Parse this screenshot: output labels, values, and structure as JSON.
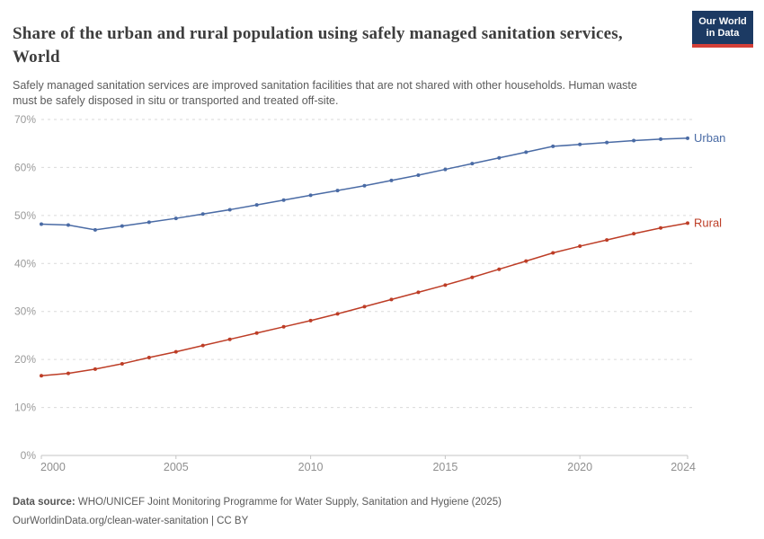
{
  "header": {
    "title": "Share of the urban and rural population using safely managed sanitation services, World",
    "subtitle": "Safely managed sanitation services are improved sanitation facilities that are not shared with other households. Human waste must be safely disposed in situ or transported and treated off-site.",
    "logo": {
      "line1": "Our World",
      "line2": "in Data",
      "bg_color": "#1c3a63",
      "accent_color": "#d43f38"
    }
  },
  "chart_data": {
    "type": "line",
    "title": "Share of the urban and rural population using safely managed sanitation services, World",
    "x": [
      2000,
      2001,
      2002,
      2003,
      2004,
      2005,
      2006,
      2007,
      2008,
      2009,
      2010,
      2011,
      2012,
      2013,
      2014,
      2015,
      2016,
      2017,
      2018,
      2019,
      2020,
      2021,
      2022,
      2023,
      2024
    ],
    "series": [
      {
        "name": "Urban",
        "color": "#4a6ba5",
        "values": [
          48.2,
          48.0,
          47.0,
          47.8,
          48.6,
          49.4,
          50.3,
          51.2,
          52.2,
          53.2,
          54.2,
          55.2,
          56.2,
          57.3,
          58.4,
          59.6,
          60.8,
          62.0,
          63.2,
          64.4,
          64.8,
          65.2,
          65.6,
          65.9,
          66.1
        ]
      },
      {
        "name": "Rural",
        "color": "#bd3d26",
        "values": [
          16.6,
          17.1,
          18.0,
          19.1,
          20.4,
          21.6,
          22.9,
          24.2,
          25.5,
          26.8,
          28.1,
          29.5,
          31.0,
          32.5,
          34.0,
          35.5,
          37.1,
          38.8,
          40.5,
          42.2,
          43.6,
          44.9,
          46.2,
          47.4,
          48.4
        ]
      }
    ],
    "xlabel": "",
    "ylabel": "",
    "ylim": [
      0,
      70
    ],
    "yticks": [
      0,
      10,
      20,
      30,
      40,
      50,
      60,
      70
    ],
    "ytick_suffix": "%",
    "xticks": [
      2000,
      2005,
      2010,
      2015,
      2020,
      2024
    ],
    "grid": "horizontal dashed",
    "legend_position": "line-end labels",
    "axis_label_color": "#8f8f8f",
    "gridline_color": "#dadada"
  },
  "footer": {
    "source_label": "Data source:",
    "source_text": " WHO/UNICEF Joint Monitoring Programme for Water Supply, Sanitation and Hygiene (2025)",
    "license_text": "OurWorldinData.org/clean-water-sanitation | CC BY"
  }
}
